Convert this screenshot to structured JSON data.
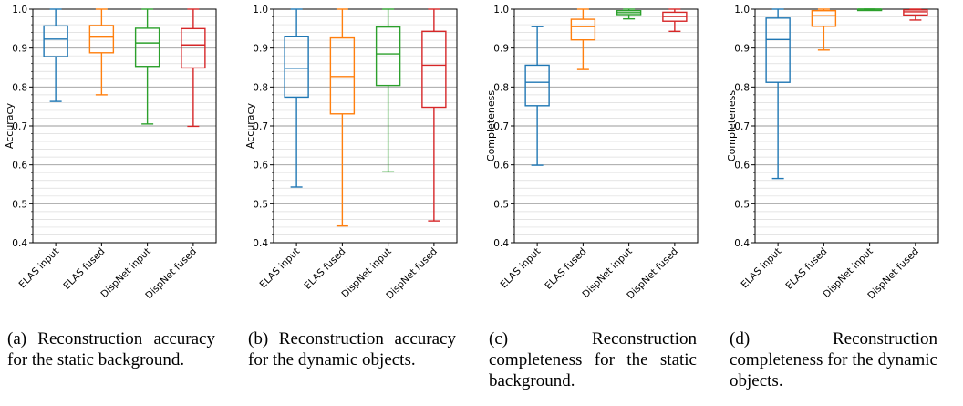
{
  "chart_data": [
    {
      "type": "box",
      "ylabel": "Accuracy",
      "ylim": [
        0.4,
        1.0
      ],
      "yticks": [
        "0.4",
        "0.5",
        "0.6",
        "0.7",
        "0.8",
        "0.9",
        "1.0"
      ],
      "grid": true,
      "categories": [
        "ELAS input",
        "ELAS fused",
        "DispNet input",
        "DispNet fused"
      ],
      "series": [
        {
          "category": "ELAS input",
          "whisker_low": 0.763,
          "q1": 0.878,
          "median": 0.923,
          "q3": 0.957,
          "whisker_high": 1.0,
          "color": "#1f77b4"
        },
        {
          "category": "ELAS fused",
          "whisker_low": 0.78,
          "q1": 0.888,
          "median": 0.928,
          "q3": 0.958,
          "whisker_high": 1.0,
          "color": "#ff7f0e"
        },
        {
          "category": "DispNet input",
          "whisker_low": 0.705,
          "q1": 0.853,
          "median": 0.913,
          "q3": 0.951,
          "whisker_high": 1.0,
          "color": "#2ca02c"
        },
        {
          "category": "DispNet fused",
          "whisker_low": 0.699,
          "q1": 0.849,
          "median": 0.908,
          "q3": 0.95,
          "whisker_high": 1.0,
          "color": "#d62728"
        }
      ],
      "caption": "(a) Reconstruction accuracy for the static background."
    },
    {
      "type": "box",
      "ylabel": "Accuracy",
      "ylim": [
        0.4,
        1.0
      ],
      "yticks": [
        "0.4",
        "0.5",
        "0.6",
        "0.7",
        "0.8",
        "0.9",
        "1.0"
      ],
      "grid": true,
      "categories": [
        "ELAS input",
        "ELAS fused",
        "DispNet input",
        "DispNet fused"
      ],
      "series": [
        {
          "category": "ELAS input",
          "whisker_low": 0.543,
          "q1": 0.774,
          "median": 0.848,
          "q3": 0.929,
          "whisker_high": 1.0,
          "color": "#1f77b4"
        },
        {
          "category": "ELAS fused",
          "whisker_low": 0.443,
          "q1": 0.731,
          "median": 0.827,
          "q3": 0.926,
          "whisker_high": 1.0,
          "color": "#ff7f0e"
        },
        {
          "category": "DispNet input",
          "whisker_low": 0.582,
          "q1": 0.804,
          "median": 0.885,
          "q3": 0.954,
          "whisker_high": 1.0,
          "color": "#2ca02c"
        },
        {
          "category": "DispNet fused",
          "whisker_low": 0.456,
          "q1": 0.748,
          "median": 0.856,
          "q3": 0.943,
          "whisker_high": 1.0,
          "color": "#d62728"
        }
      ],
      "caption": "(b) Reconstruction accuracy for the dynamic objects."
    },
    {
      "type": "box",
      "ylabel": "Completeness",
      "ylim": [
        0.4,
        1.0
      ],
      "yticks": [
        "0.4",
        "0.5",
        "0.6",
        "0.7",
        "0.8",
        "0.9",
        "1.0"
      ],
      "grid": true,
      "categories": [
        "ELAS input",
        "ELAS fused",
        "DispNet input",
        "DispNet fused"
      ],
      "series": [
        {
          "category": "ELAS input",
          "whisker_low": 0.599,
          "q1": 0.752,
          "median": 0.812,
          "q3": 0.856,
          "whisker_high": 0.955,
          "color": "#1f77b4"
        },
        {
          "category": "ELAS fused",
          "whisker_low": 0.845,
          "q1": 0.921,
          "median": 0.955,
          "q3": 0.974,
          "whisker_high": 1.0,
          "color": "#ff7f0e"
        },
        {
          "category": "DispNet input",
          "whisker_low": 0.975,
          "q1": 0.986,
          "median": 0.991,
          "q3": 0.996,
          "whisker_high": 1.0,
          "color": "#2ca02c"
        },
        {
          "category": "DispNet fused",
          "whisker_low": 0.943,
          "q1": 0.969,
          "median": 0.981,
          "q3": 0.992,
          "whisker_high": 1.0,
          "color": "#d62728"
        }
      ],
      "caption": "(c) Reconstruction completeness for the static background."
    },
    {
      "type": "box",
      "ylabel": "Completeness",
      "ylim": [
        0.4,
        1.0
      ],
      "yticks": [
        "0.4",
        "0.5",
        "0.6",
        "0.7",
        "0.8",
        "0.9",
        "1.0"
      ],
      "grid": true,
      "categories": [
        "ELAS input",
        "ELAS fused",
        "DispNet input",
        "DispNet fused"
      ],
      "series": [
        {
          "category": "ELAS input",
          "whisker_low": 0.565,
          "q1": 0.812,
          "median": 0.922,
          "q3": 0.977,
          "whisker_high": 1.0,
          "color": "#1f77b4"
        },
        {
          "category": "ELAS fused",
          "whisker_low": 0.895,
          "q1": 0.956,
          "median": 0.983,
          "q3": 0.996,
          "whisker_high": 1.0,
          "color": "#ff7f0e"
        },
        {
          "category": "DispNet input",
          "whisker_low": 0.999,
          "q1": 1.0,
          "median": 1.0,
          "q3": 1.0,
          "whisker_high": 1.0,
          "color": "#2ca02c"
        },
        {
          "category": "DispNet fused",
          "whisker_low": 0.972,
          "q1": 0.985,
          "median": 0.993,
          "q3": 0.998,
          "whisker_high": 1.0,
          "color": "#d62728"
        }
      ],
      "caption": "(d) Reconstruction completeness for the dynamic objects."
    }
  ]
}
